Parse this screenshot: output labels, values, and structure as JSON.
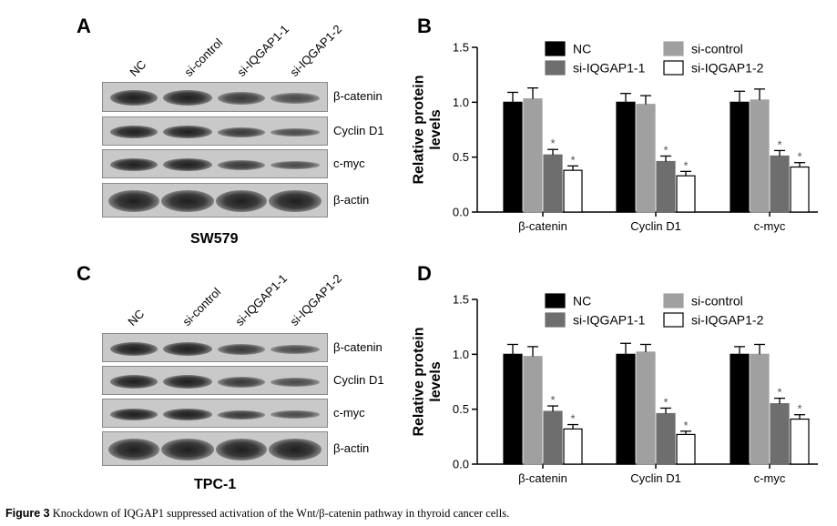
{
  "colors": {
    "NC": "#000000",
    "si-control": "#a0a0a0",
    "si-IQGAP1-1": "#6e6e6e",
    "si-IQGAP1-2": "#ffffff",
    "significance": "#555555"
  },
  "panels": {
    "A": {
      "letter": "A",
      "cell_line": "SW579",
      "lanes": [
        "NC",
        "si-control",
        "si-IQGAP1-1",
        "si-IQGAP1-2"
      ],
      "blots": [
        "β-catenin",
        "Cyclin D1",
        "c-myc",
        "β-actin"
      ]
    },
    "C": {
      "letter": "C",
      "cell_line": "TPC-1",
      "lanes": [
        "NC",
        "si-control",
        "si-IQGAP1-1",
        "si-IQGAP1-2"
      ],
      "blots": [
        "β-catenin",
        "Cyclin D1",
        "c-myc",
        "β-actin"
      ]
    }
  },
  "chart_data": [
    {
      "panel": "B",
      "type": "bar",
      "ylabel": "Relative protein levels",
      "ylim": [
        0,
        1.5
      ],
      "yticks": [
        "0.0",
        "0.5",
        "1.0",
        "1.5"
      ],
      "legend": "top-inside",
      "categories": [
        "β-catenin",
        "Cyclin D1",
        "c-myc"
      ],
      "series": [
        {
          "name": "NC",
          "values": [
            1.0,
            1.0,
            1.0
          ],
          "errors": [
            0.09,
            0.08,
            0.1
          ],
          "sig": [
            "",
            "",
            ""
          ]
        },
        {
          "name": "si-control",
          "values": [
            1.03,
            0.98,
            1.02
          ],
          "errors": [
            0.1,
            0.08,
            0.1
          ],
          "sig": [
            "",
            "",
            ""
          ]
        },
        {
          "name": "si-IQGAP1-1",
          "values": [
            0.52,
            0.46,
            0.51
          ],
          "errors": [
            0.05,
            0.05,
            0.05
          ],
          "sig": [
            "*",
            "*",
            "*"
          ]
        },
        {
          "name": "si-IQGAP1-2",
          "values": [
            0.38,
            0.33,
            0.41
          ],
          "errors": [
            0.04,
            0.04,
            0.04
          ],
          "sig": [
            "*",
            "*",
            "*"
          ]
        }
      ]
    },
    {
      "panel": "D",
      "type": "bar",
      "ylabel": "Relative protein levels",
      "ylim": [
        0,
        1.5
      ],
      "yticks": [
        "0.0",
        "0.5",
        "1.0",
        "1.5"
      ],
      "legend": "top-inside",
      "categories": [
        "β-catenin",
        "Cyclin D1",
        "c-myc"
      ],
      "series": [
        {
          "name": "NC",
          "values": [
            1.0,
            1.0,
            1.0
          ],
          "errors": [
            0.09,
            0.1,
            0.07
          ],
          "sig": [
            "",
            "",
            ""
          ]
        },
        {
          "name": "si-control",
          "values": [
            0.98,
            1.02,
            1.0
          ],
          "errors": [
            0.09,
            0.07,
            0.09
          ],
          "sig": [
            "",
            "",
            ""
          ]
        },
        {
          "name": "si-IQGAP1-1",
          "values": [
            0.48,
            0.46,
            0.55
          ],
          "errors": [
            0.05,
            0.05,
            0.05
          ],
          "sig": [
            "*",
            "*",
            "*"
          ]
        },
        {
          "name": "si-IQGAP1-2",
          "values": [
            0.32,
            0.27,
            0.41
          ],
          "errors": [
            0.04,
            0.03,
            0.04
          ],
          "sig": [
            "*",
            "*",
            "*"
          ]
        }
      ]
    }
  ],
  "caption": {
    "label": "Figure 3",
    "text": "Knockdown of IQGAP1 suppressed activation of the Wnt/β-catenin pathway in thyroid cancer cells."
  }
}
